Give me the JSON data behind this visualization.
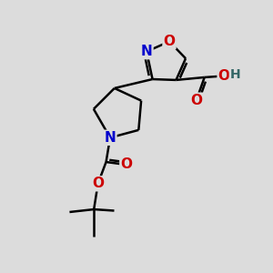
{
  "bg_color": "#dcdcdc",
  "atom_colors": {
    "C": "#000000",
    "N": "#0000cc",
    "O": "#cc0000",
    "H": "#336666"
  },
  "bond_color": "#000000",
  "bond_width": 1.8,
  "font_size_atom": 11
}
